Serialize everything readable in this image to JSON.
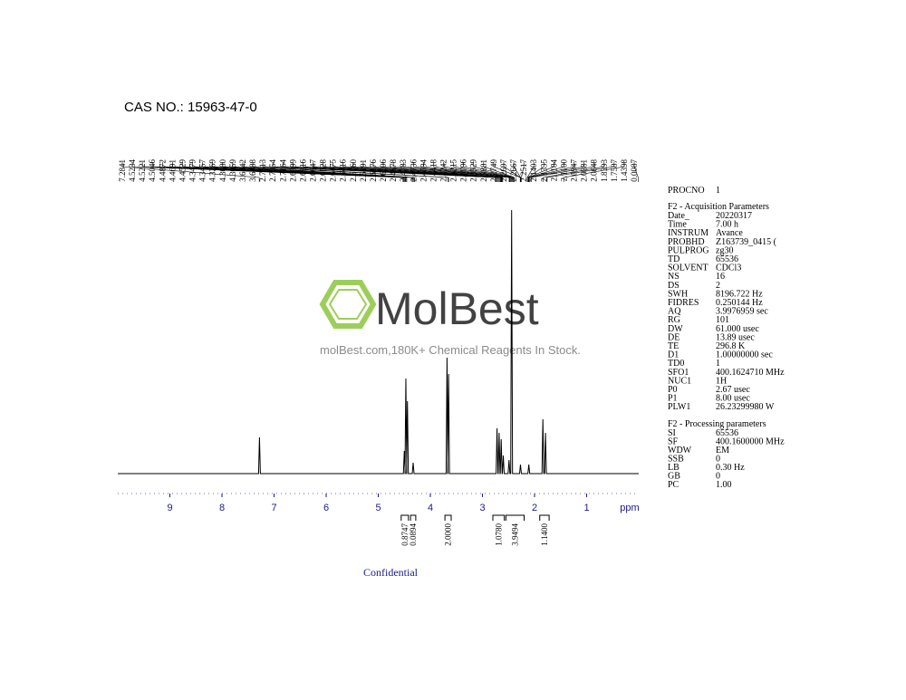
{
  "header": {
    "cas": "CAS NO.: 15963-47-0"
  },
  "watermark": {
    "brand": "MolBest",
    "tagline": "molBest.com,180K+ Chemical Reagents In Stock."
  },
  "footer": "Confidential",
  "parameters": {
    "procno": [
      "PROCNO",
      "1"
    ],
    "acquisition_title": "F2 - Acquisition Parameters",
    "acquisition": [
      [
        "Date_",
        "20220317"
      ],
      [
        "Time",
        "7.00 h"
      ],
      [
        "INSTRUM",
        "Avance"
      ],
      [
        "PROBHD",
        "Z163739_0415 ("
      ],
      [
        "PULPROG",
        "zg30"
      ],
      [
        "TD",
        "65536"
      ],
      [
        "SOLVENT",
        "CDCl3"
      ],
      [
        "NS",
        "16"
      ],
      [
        "DS",
        "2"
      ],
      [
        "SWH",
        "8196.722 Hz"
      ],
      [
        "FIDRES",
        "0.250144 Hz"
      ],
      [
        "AQ",
        "3.9976959 sec"
      ],
      [
        "RG",
        "101"
      ],
      [
        "DW",
        "61.000 usec"
      ],
      [
        "DE",
        "13.89 usec"
      ],
      [
        "TE",
        "296.8 K"
      ],
      [
        "D1",
        "1.00000000 sec"
      ],
      [
        "TD0",
        "1"
      ],
      [
        "SFO1",
        "400.1624710 MHz"
      ],
      [
        "NUC1",
        "1H"
      ],
      [
        "P0",
        "2.67 usec"
      ],
      [
        "P1",
        "8.00 usec"
      ],
      [
        "PLW1",
        "26.23299980 W"
      ]
    ],
    "processing_title": "F2 - Processing parameters",
    "processing": [
      [
        "SI",
        "65536"
      ],
      [
        "SF",
        "400.1600000 MHz"
      ],
      [
        "WDW",
        "EM"
      ],
      [
        "SSB",
        "0"
      ],
      [
        "LB",
        "0.30 Hz"
      ],
      [
        "GB",
        "0"
      ],
      [
        "PC",
        "1.00"
      ]
    ]
  },
  "chart_data": {
    "type": "nmr",
    "x_label": "ppm",
    "xlim": [
      10,
      0
    ],
    "xticks": [
      9,
      8,
      7,
      6,
      5,
      4,
      3,
      2,
      1
    ],
    "color": "#000000",
    "peak_labels": [
      "7.2841",
      "4.5234",
      "4.5221",
      "4.5046",
      "4.4872",
      "4.4691",
      "4.4529",
      "4.3479",
      "4.3457",
      "4.3269",
      "4.3080",
      "4.3059",
      "3.6642",
      "3.6488",
      "2.7513",
      "2.7354",
      "2.7164",
      "2.6999",
      "2.6816",
      "2.6647",
      "2.6528",
      "2.6475",
      "2.6416",
      "2.6360",
      "2.6291",
      "2.6176",
      "2.6106",
      "2.4878",
      "2.4783",
      "2.4736",
      "2.4594",
      "2.4418",
      "2.4242",
      "2.4215",
      "2.4096",
      "2.3929",
      "2.3881",
      "2.2749",
      "2.2697",
      "2.2667",
      "2.2517",
      "2.1403",
      "2.1335",
      "2.1184",
      "2.1100",
      "2.0947",
      "2.0881",
      "2.0648",
      "1.8393",
      "1.7587",
      "1.4398",
      "0.0087"
    ],
    "x": [
      7.28,
      4.5,
      4.47,
      4.44,
      4.33,
      3.68,
      3.65,
      2.72,
      2.68,
      2.64,
      2.6,
      2.49,
      2.44,
      2.27,
      2.11,
      1.84,
      1.79
    ],
    "values": [
      40,
      25,
      105,
      80,
      12,
      128,
      110,
      50,
      45,
      38,
      20,
      15,
      291,
      10,
      10,
      60,
      45
    ],
    "integrals": [
      {
        "label": "0.8747",
        "from": 4.56,
        "to": 4.42
      },
      {
        "label": "0.0894",
        "from": 4.38,
        "to": 4.28
      },
      {
        "label": "2.0000",
        "from": 3.72,
        "to": 3.6
      },
      {
        "label": "1.0780",
        "from": 2.8,
        "to": 2.58
      },
      {
        "label": "3.9494",
        "from": 2.55,
        "to": 2.2
      },
      {
        "label": "1.1400",
        "from": 1.9,
        "to": 1.72
      }
    ]
  }
}
